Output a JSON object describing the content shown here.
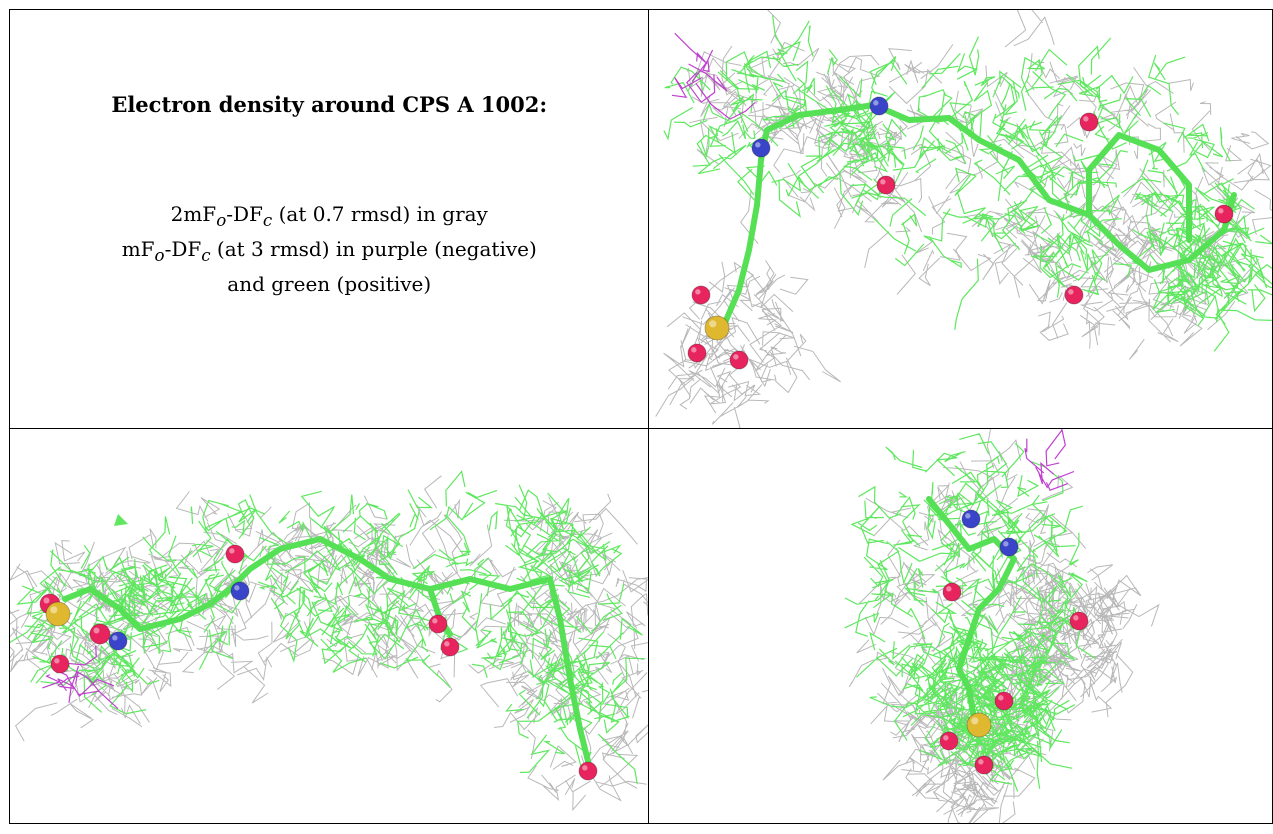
{
  "caption": {
    "title": "Electron density around CPS A 1002:",
    "line1_prefix": "2mF",
    "line1_sub_o": "o",
    "line1_mid": "-DF",
    "line1_sub_c": "c",
    "line1_suffix": " (at 0.7 rmsd) in gray",
    "line2_prefix": "mF",
    "line2_sub_o": "o",
    "line2_mid": "-DF",
    "line2_sub_c": "c",
    "line2_suffix": " (at 3 rmsd) in purple (negative)",
    "line3": "and green (positive)"
  },
  "colors": {
    "gray_mesh": "#b8b8b8",
    "green_mesh": "#5fe85f",
    "purple_mesh": "#c040d0",
    "carbon": "#55e055",
    "nitrogen": "#3a44c8",
    "oxygen": "#e8245e",
    "sulfur": "#e0b830"
  }
}
